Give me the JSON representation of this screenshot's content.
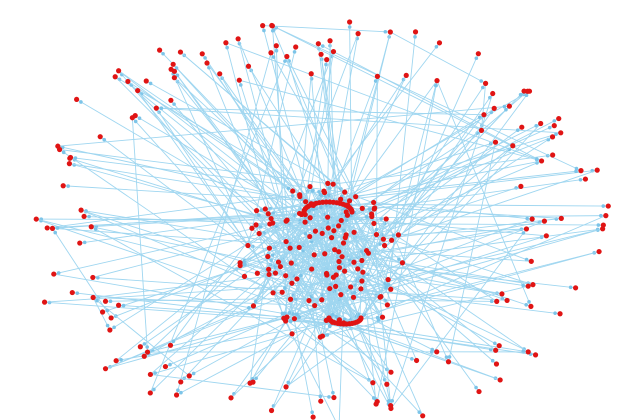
{
  "diagram": {
    "type": "directed network graph",
    "node_color": "#e01414",
    "edge_color": "#9fd6f0",
    "arrow_color": "#7cc4e8",
    "background": "#ffffff"
  }
}
